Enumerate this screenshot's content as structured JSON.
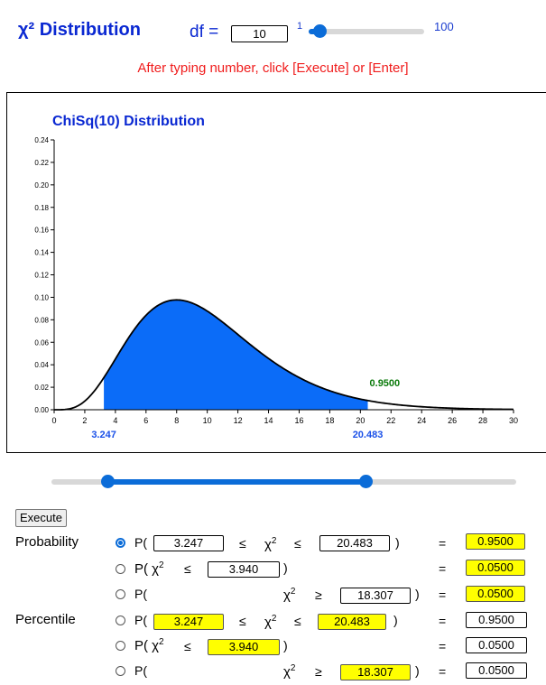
{
  "header": {
    "title": "χ² Distribution",
    "df_label": "df =",
    "df_value": "10",
    "df_min": "1",
    "df_max": "100",
    "df_slider_fraction": 0.0909,
    "hint": "After typing number, click [Execute] or [Enter]"
  },
  "chart_data": {
    "type": "area",
    "title": "ChiSq(10) Distribution",
    "df": 10,
    "xlim": [
      0,
      30
    ],
    "ylim": [
      0,
      0.24
    ],
    "x_ticks": [
      "0",
      "2",
      "4",
      "6",
      "8",
      "10",
      "12",
      "14",
      "16",
      "18",
      "20",
      "22",
      "24",
      "26",
      "28",
      "30"
    ],
    "y_ticks": [
      "0.00",
      "0.02",
      "0.04",
      "0.06",
      "0.08",
      "0.10",
      "0.12",
      "0.14",
      "0.16",
      "0.18",
      "0.20",
      "0.22",
      "0.24"
    ],
    "shaded_from": 3.247,
    "shaded_to": 20.483,
    "lower_label": "3.247",
    "upper_label": "20.483",
    "probability_label": "0.9500",
    "colors": {
      "fill": "#0b6cf8",
      "curve": "#000000",
      "title": "#0a28d2",
      "prob": "#0a7a0a",
      "bound": "#1a50e8"
    }
  },
  "range_slider": {
    "low_fraction": 0.12,
    "high_fraction": 0.675
  },
  "execute_label": "Execute",
  "probability": {
    "section_label": "Probability",
    "rows": [
      {
        "selected": true,
        "open": "P(",
        "lower": "3.247",
        "op1": "≤",
        "chi": "χ",
        "sup": "2",
        "op2": "≤",
        "upper": "20.483",
        "close": ")",
        "eq": "=",
        "result": "0.9500"
      },
      {
        "selected": false,
        "open": "P( χ",
        "sup": "2",
        "op": "≤",
        "value": "3.940",
        "close": ")",
        "eq": "=",
        "result": "0.0500"
      },
      {
        "selected": false,
        "open": "P(",
        "chi": "χ",
        "sup": "2",
        "op": "≥",
        "value": "18.307",
        "close": ")",
        "eq": "=",
        "result": "0.0500"
      }
    ]
  },
  "percentile": {
    "section_label": "Percentile",
    "rows": [
      {
        "selected": false,
        "open": "P(",
        "lower": "3.247",
        "op1": "≤",
        "chi": "χ",
        "sup": "2",
        "op2": "≤",
        "upper": "20.483",
        "close": ")",
        "eq": "=",
        "input": "0.9500"
      },
      {
        "selected": false,
        "open": "P( χ",
        "sup": "2",
        "op": "≤",
        "value": "3.940",
        "close": ")",
        "eq": "=",
        "input": "0.0500"
      },
      {
        "selected": false,
        "open": "P(",
        "chi": "χ",
        "sup": "2",
        "op": "≥",
        "value": "18.307",
        "close": ")",
        "eq": "=",
        "input": "0.0500"
      }
    ]
  }
}
